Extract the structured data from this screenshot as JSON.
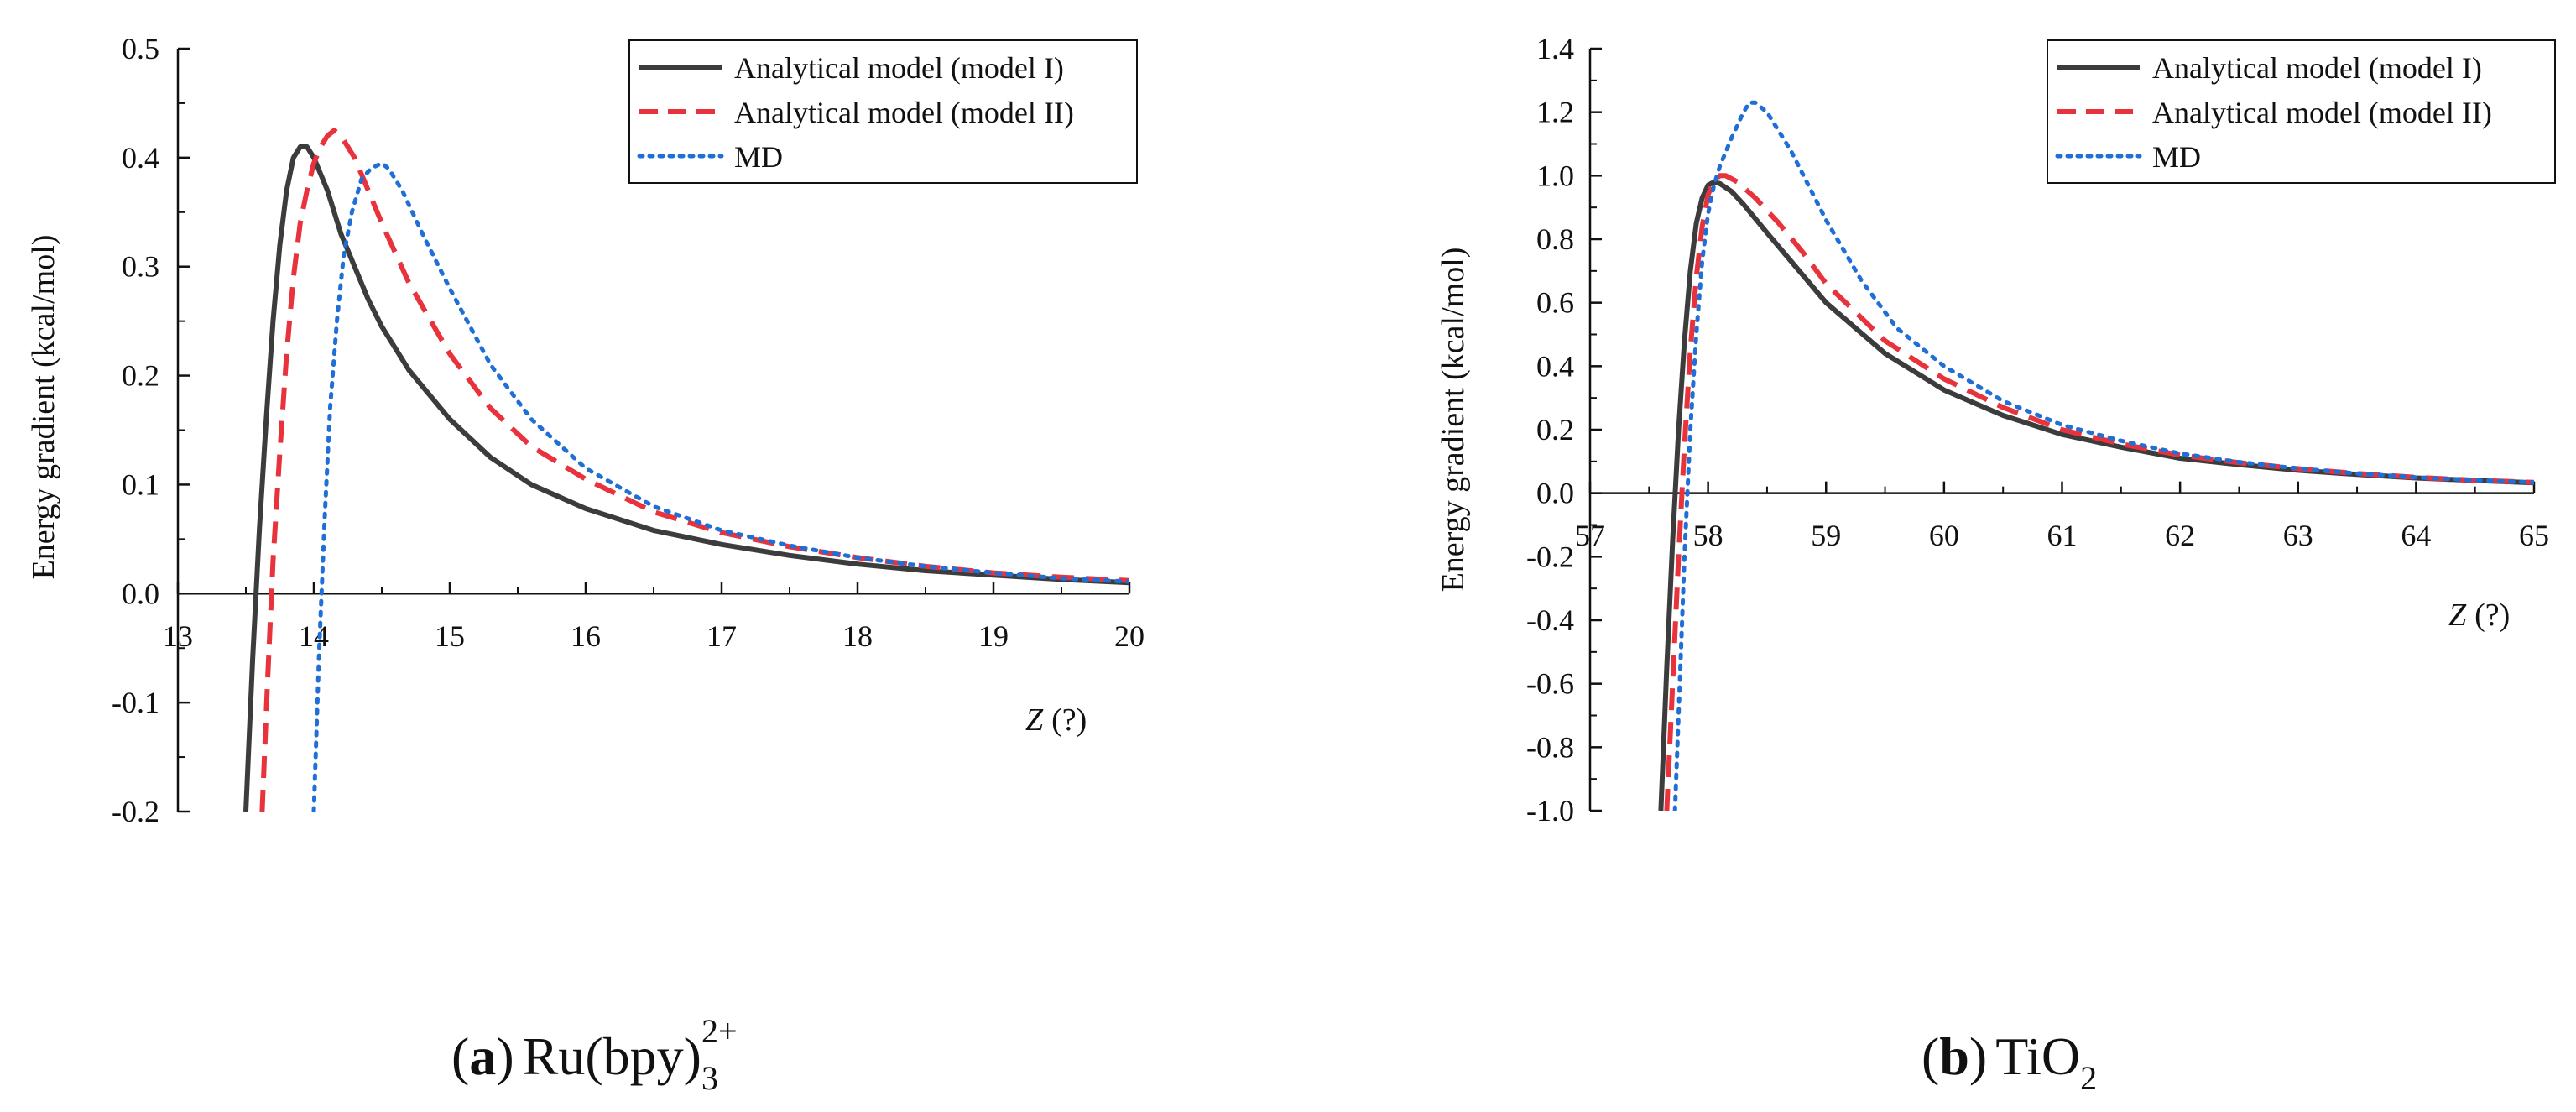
{
  "colors": {
    "model1": "#3c3c3c",
    "model2": "#e8323c",
    "md": "#1f6fd6",
    "axis": "#111111"
  },
  "chart_data": [
    {
      "type": "line",
      "panel": "a",
      "caption": {
        "letter": "a",
        "formula_main": "Ru(bpy)",
        "formula_sub": "3",
        "formula_sup": "2+"
      },
      "xlabel_var": "Z",
      "xlabel_unit": "(?)",
      "ylabel": "Energy gradient (kcal/mol)",
      "xlim": [
        13,
        20
      ],
      "ylim": [
        -0.2,
        0.5
      ],
      "xticks": [
        13,
        14,
        15,
        16,
        17,
        18,
        19,
        20
      ],
      "xtick_labels": [
        "13",
        "14",
        "15",
        "16",
        "17",
        "18",
        "19",
        "20"
      ],
      "yticks": [
        -0.2,
        -0.1,
        0.0,
        0.1,
        0.2,
        0.3,
        0.4,
        0.5
      ],
      "ytick_labels": [
        "-0.2",
        "-0.1",
        "0.0",
        "0.1",
        "0.2",
        "0.3",
        "0.4",
        "0.5"
      ],
      "legend_position": "top-right",
      "series": [
        {
          "name": "Analytical model (model I)",
          "key": "model1",
          "style": "solid",
          "points": [
            [
              13.5,
              -0.2
            ],
            [
              13.55,
              -0.06
            ],
            [
              13.6,
              0.06
            ],
            [
              13.65,
              0.16
            ],
            [
              13.7,
              0.25
            ],
            [
              13.75,
              0.32
            ],
            [
              13.8,
              0.37
            ],
            [
              13.85,
              0.4
            ],
            [
              13.9,
              0.41
            ],
            [
              13.95,
              0.41
            ],
            [
              14.0,
              0.4
            ],
            [
              14.1,
              0.37
            ],
            [
              14.2,
              0.33
            ],
            [
              14.3,
              0.3
            ],
            [
              14.4,
              0.27
            ],
            [
              14.5,
              0.245
            ],
            [
              14.7,
              0.205
            ],
            [
              15.0,
              0.16
            ],
            [
              15.3,
              0.125
            ],
            [
              15.6,
              0.1
            ],
            [
              16.0,
              0.078
            ],
            [
              16.5,
              0.058
            ],
            [
              17.0,
              0.045
            ],
            [
              17.5,
              0.035
            ],
            [
              18.0,
              0.027
            ],
            [
              18.5,
              0.021
            ],
            [
              19.0,
              0.017
            ],
            [
              19.5,
              0.013
            ],
            [
              20.0,
              0.01
            ]
          ]
        },
        {
          "name": "Analytical model (model II)",
          "key": "model2",
          "style": "dashed",
          "points": [
            [
              13.62,
              -0.2
            ],
            [
              13.66,
              -0.08
            ],
            [
              13.7,
              0.03
            ],
            [
              13.75,
              0.13
            ],
            [
              13.8,
              0.22
            ],
            [
              13.85,
              0.29
            ],
            [
              13.9,
              0.34
            ],
            [
              13.95,
              0.37
            ],
            [
              14.0,
              0.395
            ],
            [
              14.05,
              0.41
            ],
            [
              14.1,
              0.42
            ],
            [
              14.15,
              0.425
            ],
            [
              14.2,
              0.42
            ],
            [
              14.3,
              0.4
            ],
            [
              14.4,
              0.37
            ],
            [
              14.5,
              0.34
            ],
            [
              14.7,
              0.285
            ],
            [
              15.0,
              0.22
            ],
            [
              15.3,
              0.17
            ],
            [
              15.6,
              0.135
            ],
            [
              16.0,
              0.105
            ],
            [
              16.5,
              0.075
            ],
            [
              17.0,
              0.056
            ],
            [
              17.5,
              0.043
            ],
            [
              18.0,
              0.033
            ],
            [
              18.5,
              0.025
            ],
            [
              19.0,
              0.019
            ],
            [
              19.5,
              0.015
            ],
            [
              20.0,
              0.012
            ]
          ]
        },
        {
          "name": "MD",
          "key": "md",
          "style": "dotted",
          "points": [
            [
              14.0,
              -0.2
            ],
            [
              14.04,
              -0.05
            ],
            [
              14.08,
              0.07
            ],
            [
              14.12,
              0.17
            ],
            [
              14.17,
              0.25
            ],
            [
              14.22,
              0.31
            ],
            [
              14.28,
              0.35
            ],
            [
              14.35,
              0.38
            ],
            [
              14.42,
              0.39
            ],
            [
              14.5,
              0.395
            ],
            [
              14.55,
              0.39
            ],
            [
              14.65,
              0.37
            ],
            [
              14.8,
              0.33
            ],
            [
              15.0,
              0.28
            ],
            [
              15.3,
              0.21
            ],
            [
              15.6,
              0.16
            ],
            [
              16.0,
              0.115
            ],
            [
              16.5,
              0.08
            ],
            [
              17.0,
              0.058
            ],
            [
              17.5,
              0.044
            ],
            [
              18.0,
              0.033
            ],
            [
              18.5,
              0.025
            ],
            [
              19.0,
              0.019
            ],
            [
              19.5,
              0.014
            ],
            [
              20.0,
              0.011
            ]
          ]
        }
      ]
    },
    {
      "type": "line",
      "panel": "b",
      "caption": {
        "letter": "b",
        "formula_main": "TiO",
        "formula_sub": "2"
      },
      "xlabel_var": "Z",
      "xlabel_unit": "(?)",
      "ylabel": "Energy gradient (kcal/mol)",
      "xlim": [
        57,
        65
      ],
      "ylim": [
        -1.0,
        1.4
      ],
      "xticks": [
        57,
        58,
        59,
        60,
        61,
        62,
        63,
        64,
        65
      ],
      "xtick_labels": [
        "57",
        "58",
        "59",
        "60",
        "61",
        "62",
        "63",
        "64",
        "65"
      ],
      "yticks": [
        -1.0,
        -0.8,
        -0.6,
        -0.4,
        -0.2,
        0.0,
        0.2,
        0.4,
        0.6,
        0.8,
        1.0,
        1.2,
        1.4
      ],
      "ytick_labels": [
        "-1.0",
        "-0.8",
        "-0.6",
        "-0.4",
        "-0.2",
        "0.0",
        "0.2",
        "0.4",
        "0.6",
        "0.8",
        "1.0",
        "1.2",
        "1.4"
      ],
      "legend_position": "top-right",
      "series": [
        {
          "name": "Analytical model (model I)",
          "key": "model1",
          "style": "solid",
          "points": [
            [
              57.6,
              -1.0
            ],
            [
              57.65,
              -0.55
            ],
            [
              57.7,
              -0.15
            ],
            [
              57.75,
              0.2
            ],
            [
              57.8,
              0.48
            ],
            [
              57.85,
              0.7
            ],
            [
              57.9,
              0.85
            ],
            [
              57.95,
              0.93
            ],
            [
              58.0,
              0.97
            ],
            [
              58.05,
              0.98
            ],
            [
              58.1,
              0.975
            ],
            [
              58.2,
              0.95
            ],
            [
              58.3,
              0.91
            ],
            [
              58.5,
              0.82
            ],
            [
              58.75,
              0.71
            ],
            [
              59.0,
              0.6
            ],
            [
              59.5,
              0.44
            ],
            [
              60.0,
              0.325
            ],
            [
              60.5,
              0.245
            ],
            [
              61.0,
              0.185
            ],
            [
              61.5,
              0.145
            ],
            [
              62.0,
              0.11
            ],
            [
              62.5,
              0.09
            ],
            [
              63.0,
              0.072
            ],
            [
              63.5,
              0.059
            ],
            [
              64.0,
              0.048
            ],
            [
              64.5,
              0.04
            ],
            [
              65.0,
              0.033
            ]
          ]
        },
        {
          "name": "Analytical model (model II)",
          "key": "model2",
          "style": "dashed",
          "points": [
            [
              57.65,
              -1.0
            ],
            [
              57.7,
              -0.6
            ],
            [
              57.75,
              -0.2
            ],
            [
              57.8,
              0.15
            ],
            [
              57.85,
              0.45
            ],
            [
              57.9,
              0.68
            ],
            [
              57.95,
              0.84
            ],
            [
              58.0,
              0.94
            ],
            [
              58.05,
              0.985
            ],
            [
              58.1,
              1.0
            ],
            [
              58.15,
              1.0
            ],
            [
              58.25,
              0.98
            ],
            [
              58.4,
              0.93
            ],
            [
              58.6,
              0.85
            ],
            [
              58.8,
              0.76
            ],
            [
              59.0,
              0.66
            ],
            [
              59.5,
              0.48
            ],
            [
              60.0,
              0.36
            ],
            [
              60.5,
              0.27
            ],
            [
              61.0,
              0.2
            ],
            [
              61.5,
              0.155
            ],
            [
              62.0,
              0.12
            ],
            [
              62.5,
              0.096
            ],
            [
              63.0,
              0.077
            ],
            [
              63.5,
              0.062
            ],
            [
              64.0,
              0.05
            ],
            [
              64.5,
              0.041
            ],
            [
              65.0,
              0.034
            ]
          ]
        },
        {
          "name": "MD",
          "key": "md",
          "style": "dotted",
          "points": [
            [
              57.72,
              -1.0
            ],
            [
              57.76,
              -0.6
            ],
            [
              57.8,
              -0.2
            ],
            [
              57.85,
              0.2
            ],
            [
              57.9,
              0.5
            ],
            [
              57.95,
              0.73
            ],
            [
              58.0,
              0.88
            ],
            [
              58.05,
              0.97
            ],
            [
              58.1,
              1.03
            ],
            [
              58.2,
              1.12
            ],
            [
              58.3,
              1.2
            ],
            [
              58.35,
              1.23
            ],
            [
              58.4,
              1.23
            ],
            [
              58.5,
              1.2
            ],
            [
              58.7,
              1.08
            ],
            [
              59.0,
              0.86
            ],
            [
              59.3,
              0.67
            ],
            [
              59.6,
              0.52
            ],
            [
              60.0,
              0.4
            ],
            [
              60.5,
              0.29
            ],
            [
              61.0,
              0.215
            ],
            [
              61.5,
              0.165
            ],
            [
              62.0,
              0.125
            ],
            [
              62.5,
              0.098
            ],
            [
              63.0,
              0.078
            ],
            [
              63.5,
              0.062
            ],
            [
              64.0,
              0.05
            ],
            [
              64.5,
              0.041
            ],
            [
              65.0,
              0.034
            ]
          ]
        }
      ]
    }
  ]
}
